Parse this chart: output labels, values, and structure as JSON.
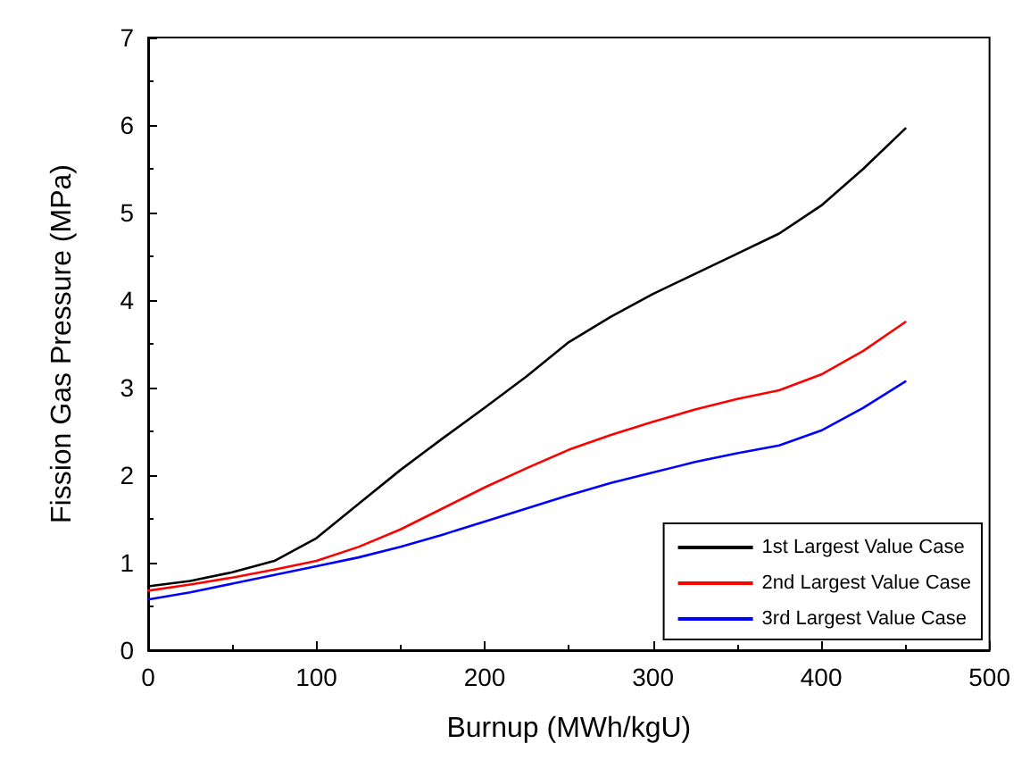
{
  "chart_data": {
    "type": "line",
    "xlabel": "Burnup (MWh/kgU)",
    "ylabel": "Fission Gas Pressure (MPa)",
    "x": [
      0,
      25,
      50,
      75,
      100,
      125,
      150,
      175,
      200,
      225,
      250,
      275,
      300,
      325,
      350,
      375,
      400,
      425,
      450
    ],
    "series": [
      {
        "name": "1st Largest Value Case",
        "color": "#000000",
        "values": [
          0.73,
          0.79,
          0.89,
          1.02,
          1.28,
          1.67,
          2.06,
          2.42,
          2.77,
          3.13,
          3.52,
          3.81,
          4.07,
          4.3,
          4.53,
          4.76,
          5.08,
          5.5,
          5.96
        ]
      },
      {
        "name": "2nd Largest Value Case",
        "color": "#ff0000",
        "values": [
          0.68,
          0.75,
          0.83,
          0.92,
          1.02,
          1.18,
          1.38,
          1.62,
          1.86,
          2.08,
          2.29,
          2.46,
          2.61,
          2.75,
          2.87,
          2.97,
          3.15,
          3.42,
          3.75
        ]
      },
      {
        "name": "3rd Largest Value Case",
        "color": "#0000ff",
        "values": [
          0.58,
          0.66,
          0.76,
          0.86,
          0.96,
          1.06,
          1.18,
          1.32,
          1.47,
          1.62,
          1.77,
          1.91,
          2.03,
          2.15,
          2.25,
          2.34,
          2.51,
          2.77,
          3.07
        ]
      }
    ],
    "xlim": [
      0,
      500
    ],
    "xticks": [
      0,
      100,
      200,
      300,
      400,
      500
    ],
    "ylim": [
      0,
      7
    ],
    "yticks": [
      0,
      1,
      2,
      3,
      4,
      5,
      6,
      7
    ],
    "grid": false,
    "legend": "bottom right",
    "marker": "none",
    "line_style": "solid"
  }
}
